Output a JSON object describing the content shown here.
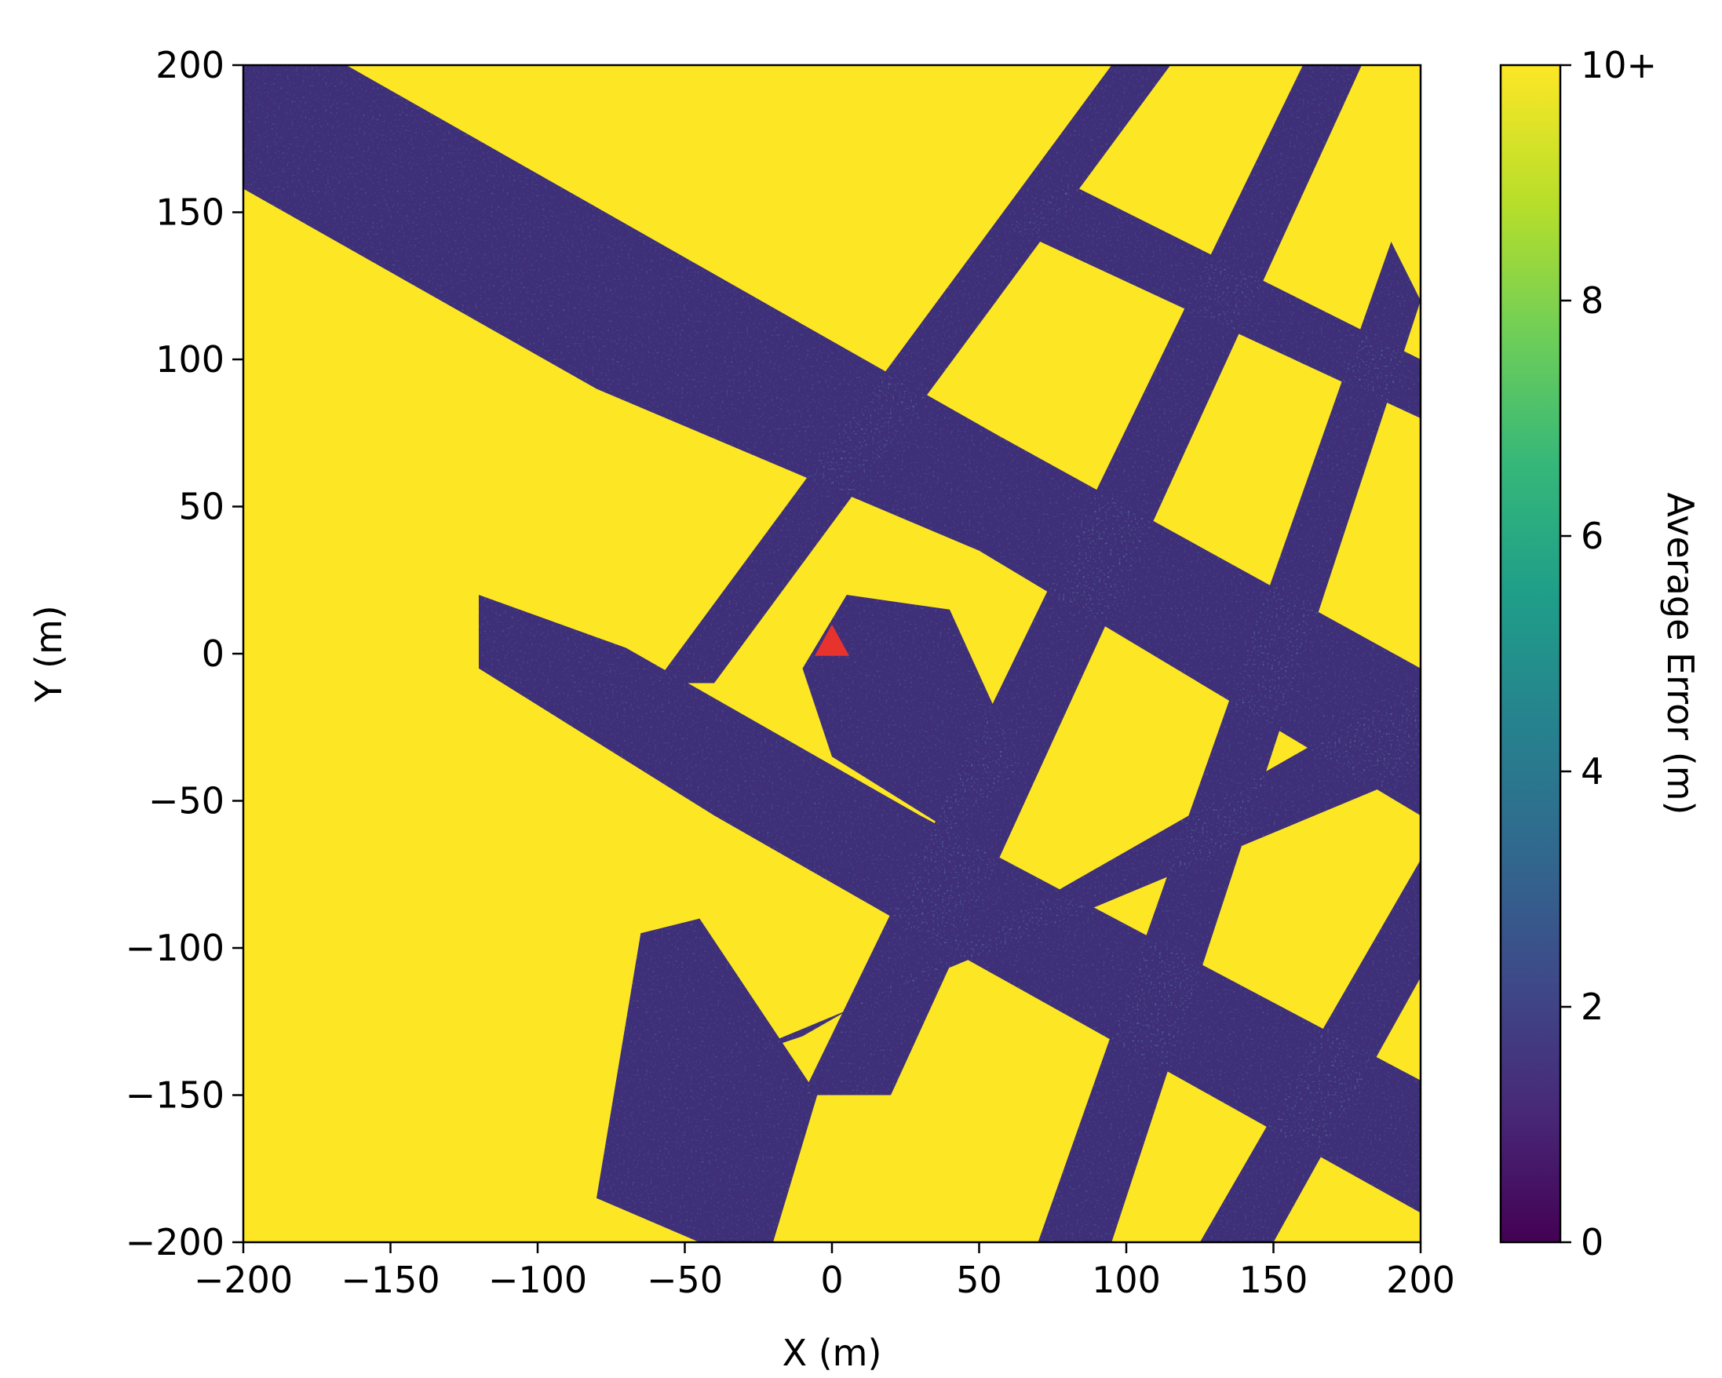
{
  "chart_data": {
    "type": "heatmap",
    "title": "",
    "xlabel": "X (m)",
    "ylabel": "Y (m)",
    "xlim": [
      -200,
      200
    ],
    "ylim": [
      -200,
      200
    ],
    "xticks": [
      "−200",
      "−150",
      "−100",
      "−50",
      "0",
      "50",
      "100",
      "150",
      "200"
    ],
    "yticks": [
      "200",
      "150",
      "100",
      "50",
      "0",
      "−50",
      "−100",
      "−150",
      "−200"
    ],
    "xtick_values": [
      -200,
      -150,
      -100,
      -50,
      0,
      50,
      100,
      150,
      200
    ],
    "ytick_values": [
      200,
      150,
      100,
      50,
      0,
      -50,
      -100,
      -150,
      -200
    ],
    "grid": false,
    "colormap": "viridis",
    "colors": {
      "high": "#fde725",
      "mid_high": "#35b779",
      "mid": "#21918c",
      "mid_low": "#31688e",
      "low": "#443983",
      "min": "#440154",
      "marker": "#e8322d",
      "street_base": "#3e2f78"
    },
    "colorbar": {
      "label": "Average Error (m)",
      "range": [
        0,
        10
      ],
      "ticks": [
        {
          "value": 0,
          "label": "0"
        },
        {
          "value": 2,
          "label": "2"
        },
        {
          "value": 4,
          "label": "4"
        },
        {
          "value": 6,
          "label": "6"
        },
        {
          "value": 8,
          "label": "8"
        },
        {
          "value": 10,
          "label": "10+"
        }
      ]
    },
    "marker": {
      "x": 0,
      "y": 3,
      "shape": "triangle"
    },
    "low_error_regions": [
      {
        "name": "main-diagonal-avenue",
        "points": [
          [
            -200,
            200
          ],
          [
            -165,
            200
          ],
          [
            55,
            75
          ],
          [
            200,
            -5
          ],
          [
            200,
            -55
          ],
          [
            50,
            35
          ],
          [
            -80,
            90
          ],
          [
            -200,
            158
          ]
        ]
      },
      {
        "name": "lower-diagonal-avenue",
        "points": [
          [
            -120,
            20
          ],
          [
            -70,
            2
          ],
          [
            30,
            -55
          ],
          [
            200,
            -145
          ],
          [
            200,
            -190
          ],
          [
            30,
            -95
          ],
          [
            -40,
            -55
          ],
          [
            -120,
            -5
          ]
        ]
      },
      {
        "name": "cross-street-1",
        "points": [
          [
            -60,
            -10
          ],
          [
            -40,
            -10
          ],
          [
            115,
            200
          ],
          [
            95,
            200
          ]
        ]
      },
      {
        "name": "cross-street-2",
        "points": [
          [
            -10,
            -150
          ],
          [
            20,
            -150
          ],
          [
            180,
            200
          ],
          [
            160,
            200
          ]
        ]
      },
      {
        "name": "cross-street-3",
        "points": [
          [
            70,
            -200
          ],
          [
            95,
            -200
          ],
          [
            200,
            120
          ],
          [
            190,
            140
          ]
        ]
      },
      {
        "name": "cross-street-4",
        "points": [
          [
            125,
            -200
          ],
          [
            150,
            -200
          ],
          [
            200,
            -110
          ],
          [
            200,
            -70
          ]
        ]
      },
      {
        "name": "upper-diagonal-street",
        "points": [
          [
            60,
            145
          ],
          [
            80,
            160
          ],
          [
            200,
            100
          ],
          [
            200,
            80
          ]
        ]
      },
      {
        "name": "lower-right-avenue",
        "points": [
          [
            -40,
            -140
          ],
          [
            -10,
            -130
          ],
          [
            200,
            -10
          ],
          [
            200,
            -40
          ]
        ]
      },
      {
        "name": "south-block",
        "points": [
          [
            -80,
            -185
          ],
          [
            -45,
            -200
          ],
          [
            -20,
            -200
          ],
          [
            -5,
            -150
          ],
          [
            -45,
            -90
          ],
          [
            -65,
            -95
          ]
        ]
      },
      {
        "name": "center-plaza",
        "points": [
          [
            -10,
            -5
          ],
          [
            5,
            20
          ],
          [
            40,
            15
          ],
          [
            65,
            -40
          ],
          [
            40,
            -60
          ],
          [
            0,
            -35
          ]
        ]
      }
    ],
    "high_error_region_note": "",
    "value_min": 0,
    "value_max": 10
  }
}
